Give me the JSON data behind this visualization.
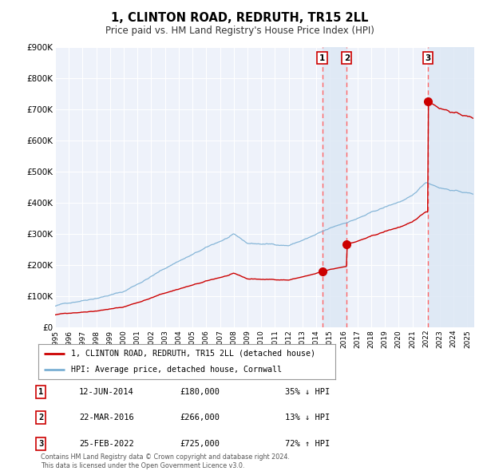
{
  "title": "1, CLINTON ROAD, REDRUTH, TR15 2LL",
  "subtitle": "Price paid vs. HM Land Registry's House Price Index (HPI)",
  "ylim": [
    0,
    900000
  ],
  "yticks": [
    0,
    100000,
    200000,
    300000,
    400000,
    500000,
    600000,
    700000,
    800000,
    900000
  ],
  "ytick_labels": [
    "£0",
    "£100K",
    "£200K",
    "£300K",
    "£400K",
    "£500K",
    "£600K",
    "£700K",
    "£800K",
    "£900K"
  ],
  "xlim_start": 1995.0,
  "xlim_end": 2025.5,
  "xticks": [
    1995,
    1996,
    1997,
    1998,
    1999,
    2000,
    2001,
    2002,
    2003,
    2004,
    2005,
    2006,
    2007,
    2008,
    2009,
    2010,
    2011,
    2012,
    2013,
    2014,
    2015,
    2016,
    2017,
    2018,
    2019,
    2020,
    2021,
    2022,
    2023,
    2024,
    2025
  ],
  "bg_color": "#ffffff",
  "plot_bg_color": "#eef2fa",
  "grid_color": "#ffffff",
  "red_line_color": "#cc0000",
  "blue_line_color": "#7aafd4",
  "sale_marker_color": "#cc0000",
  "sale_vline_color": "#ff6666",
  "highlight_bg_color": "#dde8f5",
  "legend_label_red": "1, CLINTON ROAD, REDRUTH, TR15 2LL (detached house)",
  "legend_label_blue": "HPI: Average price, detached house, Cornwall",
  "sales": [
    {
      "num": 1,
      "date": 2014.44,
      "price": 180000,
      "label": "12-JUN-2014",
      "price_str": "£180,000",
      "pct": "35% ↓ HPI"
    },
    {
      "num": 2,
      "date": 2016.22,
      "price": 266000,
      "label": "22-MAR-2016",
      "price_str": "£266,000",
      "pct": "13% ↓ HPI"
    },
    {
      "num": 3,
      "date": 2022.12,
      "price": 725000,
      "label": "25-FEB-2022",
      "price_str": "£725,000",
      "pct": "72% ↑ HPI"
    }
  ],
  "footer_line1": "Contains HM Land Registry data © Crown copyright and database right 2024.",
  "footer_line2": "This data is licensed under the Open Government Licence v3.0."
}
